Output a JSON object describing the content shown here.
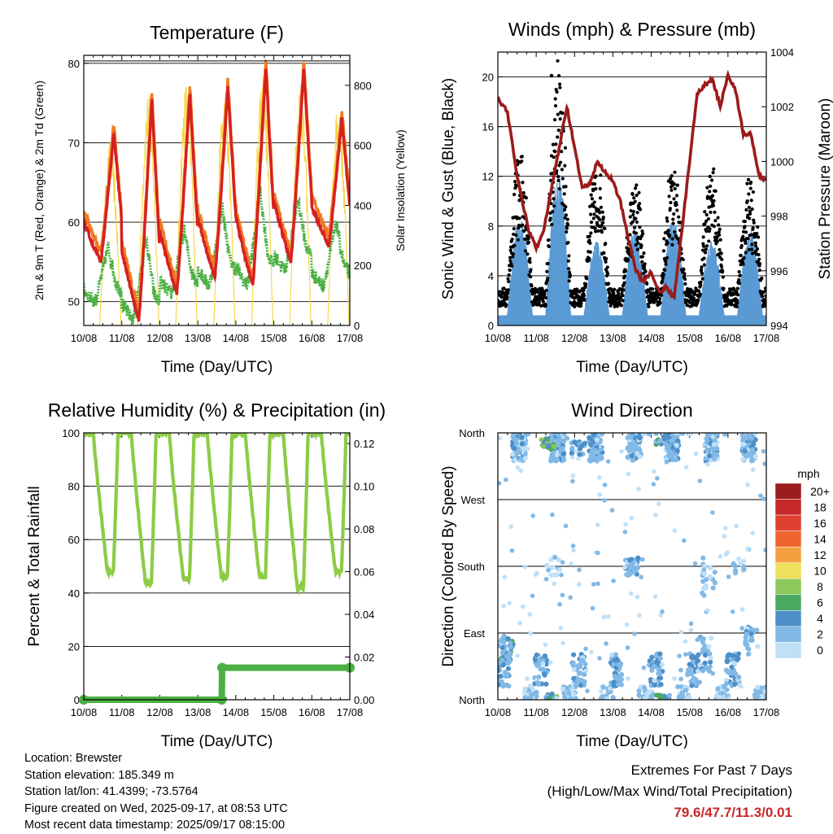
{
  "colors": {
    "temp_red": "#d62020",
    "temp_orange": "#f07a22",
    "dewpoint_green": "#4bb044",
    "solar_yellow": "#f7d84b",
    "gust_black": "#000000",
    "wind_blue": "#5b9bd5",
    "pressure_maroon": "#9b1b1b",
    "rh_green": "#8ccc46",
    "precip_green": "#4bb044"
  },
  "footer": {
    "location": "Location: Brewster",
    "elevation": "Station elevation: 185.349 m",
    "latlon": "Station lat/lon: 41.4399; -73.5764",
    "created": "Figure created on Wed, 2025-09-17, at 08:53 UTC",
    "recent": "Most recent data timestamp: 2025/09/17 08:15:00"
  },
  "extremes": {
    "title": "Extremes For Past 7 Days",
    "subtitle": "(High/Low/Max Wind/Total Precipitation)",
    "values": "79.6/47.7/11.3/0.01"
  },
  "chart_data": [
    {
      "type": "line",
      "title": "Temperature (F)",
      "xlabel": "Time (Day/UTC)",
      "ylabel": "2m & 9m T (Red, Orange) & 2m Td (Green)",
      "ylabel_right": "Solar Insolation (Yellow)",
      "x_ticks": [
        "10/08",
        "11/08",
        "12/08",
        "13/08",
        "14/08",
        "15/08",
        "16/08",
        "17/08"
      ],
      "xlim": [
        0,
        7
      ],
      "ylim": [
        47,
        81
      ],
      "yticks": [
        50,
        60,
        70,
        80
      ],
      "ylim_right": [
        0,
        900
      ],
      "yticks_right": [
        0,
        200,
        400,
        600,
        800
      ],
      "grid": "horizontal",
      "daily_temperature": {
        "min": [
          55,
          47.7,
          51,
          53,
          52,
          55,
          57
        ],
        "max": [
          71.2,
          75.5,
          76.2,
          77,
          79.6,
          79.3,
          73
        ]
      },
      "daily_dewpoint": {
        "min": [
          50,
          47.7,
          51,
          52,
          52,
          54,
          52
        ],
        "max": [
          57,
          58,
          59,
          62,
          64,
          63,
          60
        ]
      },
      "daily_solar_max": [
        620,
        780,
        820,
        780,
        860,
        820,
        740
      ],
      "series": [
        {
          "name": "2m T",
          "color": "#d62020"
        },
        {
          "name": "9m T",
          "color": "#f07a22"
        },
        {
          "name": "2m Td",
          "color": "#4bb044"
        },
        {
          "name": "Solar Insolation",
          "color": "#f7d84b"
        }
      ]
    },
    {
      "type": "line",
      "title": "Winds (mph) & Pressure (mb)",
      "xlabel": "Time (Day/UTC)",
      "ylabel": "Sonic Wind & Gust (Blue, Black)",
      "ylabel_right": "Station Pressure (Maroon)",
      "x_ticks": [
        "10/08",
        "11/08",
        "12/08",
        "13/08",
        "14/08",
        "15/08",
        "16/08",
        "17/08"
      ],
      "xlim": [
        0,
        7
      ],
      "ylim": [
        0,
        22
      ],
      "yticks": [
        0,
        4,
        8,
        12,
        16,
        20
      ],
      "ylim_right": [
        994,
        1004
      ],
      "yticks_right": [
        994,
        996,
        998,
        1000,
        1002,
        1004
      ],
      "grid": "horizontal",
      "daily_gust_max": [
        13,
        20,
        12,
        11,
        12,
        12,
        11
      ],
      "daily_wind_max": [
        8,
        11.3,
        6,
        7,
        8,
        6,
        7
      ],
      "pressure": {
        "x": [
          0,
          0.25,
          0.5,
          0.8,
          1.0,
          1.2,
          1.4,
          1.6,
          1.8,
          2.0,
          2.2,
          2.4,
          2.6,
          2.8,
          3.0,
          3.2,
          3.4,
          3.6,
          3.8,
          4.0,
          4.2,
          4.4,
          4.6,
          4.8,
          5.0,
          5.2,
          5.4,
          5.6,
          5.8,
          6.0,
          6.2,
          6.4,
          6.6,
          6.8,
          7.0
        ],
        "y": [
          1002.3,
          1001.8,
          999.5,
          997.5,
          996.8,
          997.5,
          999.0,
          1000.5,
          1002.0,
          1000.5,
          999.0,
          999.2,
          1000.0,
          999.6,
          999.3,
          998.5,
          997.2,
          996.0,
          995.6,
          996.0,
          995.2,
          995.4,
          995.0,
          997.5,
          1000.0,
          1002.5,
          1002.8,
          1003.0,
          1002.0,
          1003.2,
          1002.6,
          1001.0,
          1001.0,
          999.5,
          999.3
        ]
      },
      "series": [
        {
          "name": "Sonic Wind",
          "color": "#5b9bd5"
        },
        {
          "name": "Gust",
          "color": "#000000"
        },
        {
          "name": "Station Pressure",
          "color": "#9b1b1b"
        }
      ]
    },
    {
      "type": "line",
      "title": "Relative Humidity (%) & Precipitation (in)",
      "xlabel": "Time (Day/UTC)",
      "ylabel": "Percent & Total Rainfall",
      "x_ticks": [
        "10/08",
        "11/08",
        "12/08",
        "13/08",
        "14/08",
        "15/08",
        "16/08",
        "17/08"
      ],
      "xlim": [
        0,
        7
      ],
      "ylim": [
        0,
        100
      ],
      "yticks": [
        0,
        20,
        40,
        60,
        80,
        100
      ],
      "ylim_right": [
        0,
        0.125
      ],
      "yticks_right": [
        "0.00",
        "0.02",
        "0.04",
        "0.06",
        "0.08",
        "0.10",
        "0.12"
      ],
      "grid": "horizontal",
      "daily_rh_min": [
        48,
        44,
        45,
        46,
        46,
        42,
        48
      ],
      "daily_rh_max": [
        100,
        100,
        100,
        100,
        100,
        100,
        100
      ],
      "precip": {
        "x": [
          0,
          3.63,
          3.64,
          7.0
        ],
        "y": [
          0.0,
          0.0,
          0.015,
          0.015
        ]
      },
      "series": [
        {
          "name": "Relative Humidity",
          "color": "#8ccc46"
        },
        {
          "name": "Total Rainfall",
          "color": "#4bb044"
        }
      ]
    },
    {
      "type": "scatter",
      "title": "Wind Direction",
      "xlabel": "Time (Day/UTC)",
      "ylabel": "Direction (Colored By Speed)",
      "x_ticks": [
        "10/08",
        "11/08",
        "12/08",
        "13/08",
        "14/08",
        "15/08",
        "16/08",
        "17/08"
      ],
      "xlim": [
        0,
        7
      ],
      "y_tick_labels": [
        "North",
        "East",
        "South",
        "West",
        "North"
      ],
      "ylim": [
        0,
        360
      ],
      "grid": "horizontal",
      "colorbar": {
        "title": "mph",
        "labels": [
          "20+",
          "18",
          "16",
          "14",
          "12",
          "10",
          "8",
          "6",
          "4",
          "2",
          "0"
        ],
        "colors": [
          "#9b1d1d",
          "#c62828",
          "#e04030",
          "#f06430",
          "#f5a040",
          "#eee05a",
          "#8cc85c",
          "#4aa860",
          "#4d8fc8",
          "#82b9e6",
          "#bfe0f7"
        ]
      }
    }
  ]
}
